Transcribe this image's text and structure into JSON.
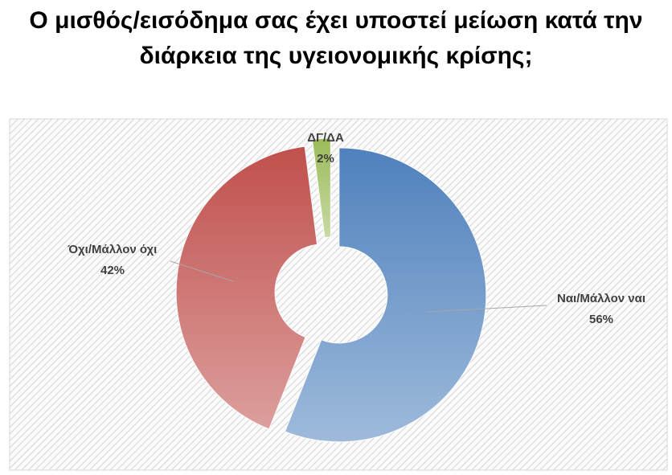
{
  "chart_data": {
    "type": "donut",
    "title": "Ο μισθός/εισόδημα σας έχει υποστεί μείωση κατά την διάρκεια της υγειονομικής κρίσης;",
    "categories": [
      "Ναι/Μάλλον ναι",
      "Όχι/Μάλλον όχι",
      "ΔΓ/ΔΑ"
    ],
    "values": [
      56,
      42,
      2
    ],
    "value_labels": [
      "56%",
      "42%",
      "2%"
    ],
    "colors": [
      "#4f81bd",
      "#c0504d",
      "#9bbb59"
    ]
  }
}
